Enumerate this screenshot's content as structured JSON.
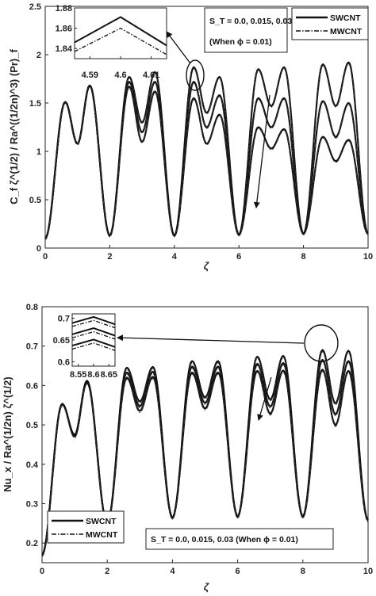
{
  "chart_data": [
    {
      "type": "line",
      "xlabel": "ζ",
      "ylabel": "C_f ζ^(1/2) / Ra^((1/2n)^3) (Pr)_f",
      "xlim": [
        0,
        10
      ],
      "ylim": [
        0,
        2.5
      ],
      "xticks": [
        "0",
        "2",
        "4",
        "6",
        "8",
        "10"
      ],
      "yticks": [
        "0",
        "0.5",
        "1",
        "1.5",
        "2",
        "2.5"
      ],
      "annotation": "S_T = 0.0, 0.015, 0.03",
      "annotation_sub": "(When ϕ = 0.01)",
      "legend_position": "top-right",
      "series": [
        {
          "name": "SWCNT",
          "style": "solid",
          "values": []
        },
        {
          "name": "MWCNT",
          "style": "dash-dot",
          "values": []
        }
      ],
      "peaks": [
        {
          "x": 0.62,
          "levels": [
            1.51,
            1.51,
            1.51
          ]
        },
        {
          "x": 1.38,
          "levels": [
            1.68,
            1.68,
            1.68
          ]
        },
        {
          "x": 2.6,
          "levels": [
            1.77,
            1.72,
            1.67
          ]
        },
        {
          "x": 3.4,
          "levels": [
            1.82,
            1.72,
            1.62
          ]
        },
        {
          "x": 4.6,
          "levels": [
            1.87,
            1.72,
            1.55
          ]
        },
        {
          "x": 5.4,
          "levels": [
            1.77,
            1.58,
            1.38
          ]
        },
        {
          "x": 6.6,
          "levels": [
            1.85,
            1.55,
            1.25
          ]
        },
        {
          "x": 7.4,
          "levels": [
            1.87,
            1.55,
            1.23
          ]
        },
        {
          "x": 8.6,
          "levels": [
            1.9,
            1.52,
            1.15
          ]
        },
        {
          "x": 9.4,
          "levels": [
            1.92,
            1.5,
            1.12
          ]
        }
      ],
      "troughs": [
        {
          "x": 1.0,
          "levels": [
            1.08,
            1.08,
            1.08
          ]
        },
        {
          "x": 3.0,
          "levels": [
            1.3,
            1.2,
            1.1
          ]
        },
        {
          "x": 5.0,
          "levels": [
            1.4,
            1.25,
            1.08
          ]
        },
        {
          "x": 7.0,
          "levels": [
            1.47,
            1.25,
            1.03
          ]
        },
        {
          "x": 9.0,
          "levels": [
            1.47,
            1.15,
            0.9
          ]
        }
      ],
      "minima": [
        {
          "x": 0.0,
          "value": 0.1
        },
        {
          "x": 2.0,
          "value": 0.13
        },
        {
          "x": 4.0,
          "value": 0.13
        },
        {
          "x": 6.0,
          "value": 0.14
        },
        {
          "x": 8.0,
          "value": 0.15
        },
        {
          "x": 10.0,
          "value": 0.15
        }
      ],
      "inset": {
        "xlim": [
          4.585,
          4.615
        ],
        "ylim": [
          1.83,
          1.88
        ],
        "xticks": [
          "4.59",
          "4.6",
          "4.61"
        ],
        "yticks": [
          "1.84",
          "1.86",
          "1.88"
        ],
        "series": [
          {
            "name": "SWCNT",
            "x": [
              4.585,
              4.6,
              4.615
            ],
            "values": [
              1.846,
              1.871,
              1.843
            ]
          },
          {
            "name": "MWCNT",
            "x": [
              4.585,
              4.6,
              4.615
            ],
            "values": [
              1.837,
              1.86,
              1.834
            ]
          }
        ]
      }
    },
    {
      "type": "line",
      "xlabel": "ζ",
      "ylabel": "Nu_x / Ra^(1/2n) ζ^(1/2)",
      "xlim": [
        0,
        10
      ],
      "ylim": [
        0.15,
        0.8
      ],
      "xticks": [
        "0",
        "2",
        "4",
        "6",
        "8",
        "10"
      ],
      "yticks": [
        "0.2",
        "0.3",
        "0.4",
        "0.5",
        "0.6",
        "0.7",
        "0.8"
      ],
      "annotation": "S_T = 0.0, 0.015, 0.03 (When ϕ = 0.01)",
      "legend_position": "bottom-left",
      "series": [
        {
          "name": "SWCNT",
          "style": "solid",
          "values": []
        },
        {
          "name": "MWCNT",
          "style": "dash-dot",
          "values": []
        }
      ],
      "peaks": [
        {
          "x": 0.62,
          "levels": [
            0.553,
            0.553,
            0.553
          ]
        },
        {
          "x": 1.38,
          "levels": [
            0.612,
            0.61,
            0.608
          ]
        },
        {
          "x": 2.6,
          "levels": [
            0.645,
            0.633,
            0.62
          ]
        },
        {
          "x": 3.4,
          "levels": [
            0.647,
            0.635,
            0.622
          ]
        },
        {
          "x": 4.6,
          "levels": [
            0.662,
            0.648,
            0.633
          ]
        },
        {
          "x": 5.4,
          "levels": [
            0.662,
            0.648,
            0.633
          ]
        },
        {
          "x": 6.6,
          "levels": [
            0.673,
            0.655,
            0.637
          ]
        },
        {
          "x": 7.4,
          "levels": [
            0.675,
            0.657,
            0.638
          ]
        },
        {
          "x": 8.6,
          "levels": [
            0.69,
            0.665,
            0.64
          ]
        },
        {
          "x": 9.4,
          "levels": [
            0.688,
            0.662,
            0.637
          ]
        }
      ],
      "troughs": [
        {
          "x": 1.0,
          "levels": [
            0.475,
            0.473,
            0.471
          ]
        },
        {
          "x": 3.0,
          "levels": [
            0.56,
            0.548,
            0.536
          ]
        },
        {
          "x": 5.0,
          "levels": [
            0.57,
            0.556,
            0.542
          ]
        },
        {
          "x": 7.0,
          "levels": [
            0.565,
            0.547,
            0.529
          ]
        },
        {
          "x": 9.0,
          "levels": [
            0.555,
            0.527,
            0.5
          ]
        }
      ],
      "minima": [
        {
          "x": 0.0,
          "value": 0.17
        },
        {
          "x": 2.0,
          "value": 0.25
        },
        {
          "x": 4.0,
          "value": 0.265
        },
        {
          "x": 6.0,
          "value": 0.268
        },
        {
          "x": 8.0,
          "value": 0.268
        },
        {
          "x": 10.0,
          "value": 0.258
        }
      ],
      "inset": {
        "xlim": [
          8.53,
          8.67
        ],
        "ylim": [
          0.59,
          0.71
        ],
        "xticks": [
          "8.55",
          "8.6",
          "8.65"
        ],
        "yticks": [
          "0.6",
          "0.65",
          "0.7"
        ],
        "series": [
          {
            "name": "SWCNT",
            "x": [
              8.53,
              8.6,
              8.67
            ],
            "values": [
              0.689,
              0.703,
              0.686
            ]
          },
          {
            "name": "MWCNT",
            "x": [
              8.53,
              8.6,
              8.67
            ],
            "values": [
              0.681,
              0.695,
              0.678
            ]
          },
          {
            "name": "SWCNT",
            "x": [
              8.53,
              8.6,
              8.67
            ],
            "values": [
              0.663,
              0.677,
              0.66
            ]
          },
          {
            "name": "MWCNT",
            "x": [
              8.53,
              8.6,
              8.67
            ],
            "values": [
              0.655,
              0.669,
              0.652
            ]
          },
          {
            "name": "SWCNT",
            "x": [
              8.53,
              8.6,
              8.67
            ],
            "values": [
              0.637,
              0.651,
              0.634
            ]
          },
          {
            "name": "MWCNT",
            "x": [
              8.53,
              8.6,
              8.67
            ],
            "values": [
              0.629,
              0.643,
              0.626
            ]
          }
        ]
      }
    }
  ]
}
